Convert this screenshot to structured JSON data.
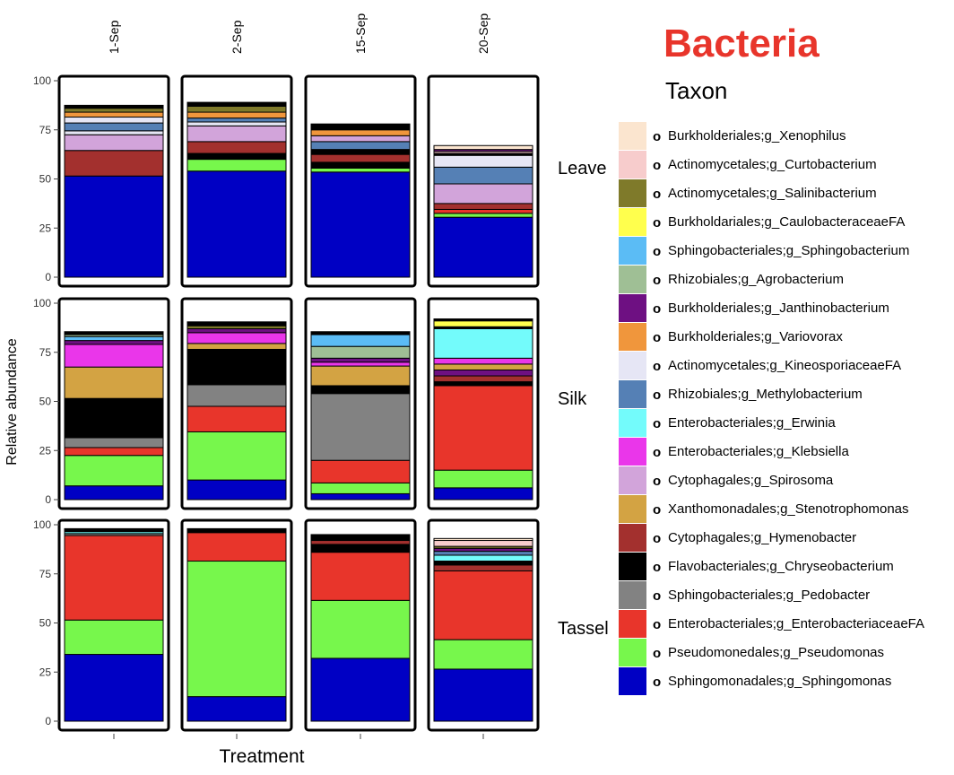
{
  "header": {
    "title": "Bacteria",
    "legend_title": "Taxon"
  },
  "chart_data": {
    "type": "bar",
    "stacked": true,
    "faceted": true,
    "xlabel": "Treatment",
    "ylabel": "Relative abundance",
    "ylim": [
      0,
      100
    ],
    "yticks": [
      0,
      25,
      50,
      75,
      100
    ],
    "columns": [
      "1-Sep",
      "2-Sep",
      "15-Sep",
      "20-Sep"
    ],
    "rows": [
      "Leave",
      "Silk",
      "Tassel"
    ],
    "legend_position": "right",
    "taxa": [
      {
        "bullet": "o",
        "name": "Burkholderiales;g_Xenophilus",
        "color": "#fbe5cf"
      },
      {
        "bullet": "o",
        "name": "Actinomycetales;g_Curtobacterium",
        "color": "#f7cccc"
      },
      {
        "bullet": "o",
        "name": "Actinomycetales;g_Salinibacterium",
        "color": "#7f7a2a"
      },
      {
        "bullet": "o",
        "name": "Burkholdariales;g_CaulobacteraceaeFA",
        "color": "#ffff4d"
      },
      {
        "bullet": "o",
        "name": "Sphingobacteriales;g_Sphingobacterium",
        "color": "#5bbcf5"
      },
      {
        "bullet": "o",
        "name": "Rhizobiales;g_Agrobacterium",
        "color": "#9fbf95"
      },
      {
        "bullet": "o",
        "name": "Burkholderiales;g_Janthinobacterium",
        "color": "#6e1082"
      },
      {
        "bullet": "o",
        "name": "Burkholderiales;g_Variovorax",
        "color": "#f0963c"
      },
      {
        "bullet": "o",
        "name": "Actinomycetales;g_KineosporiaceaeFA",
        "color": "#e6e6f5"
      },
      {
        "bullet": "o",
        "name": "Rhizobiales;g_Methylobacterium",
        "color": "#5580b5"
      },
      {
        "bullet": "o",
        "name": "Enterobacteriales;g_Erwinia",
        "color": "#73fbfb"
      },
      {
        "bullet": "o",
        "name": "Enterobacteriales;g_Klebsiella",
        "color": "#ea36ea"
      },
      {
        "bullet": "o",
        "name": "Cytophagales;g_Spirosoma",
        "color": "#d2a4da"
      },
      {
        "bullet": "o",
        "name": "Xanthomonadales;g_Stenotrophomonas",
        "color": "#d3a343"
      },
      {
        "bullet": "o",
        "name": "Cytophagales;g_Hymenobacter",
        "color": "#a3302e"
      },
      {
        "bullet": "o",
        "name": "Flavobacteriales;g_Chryseobacterium",
        "color": "#000000"
      },
      {
        "bullet": "o",
        "name": "Sphingobacteriales;g_Pedobacter",
        "color": "#828282"
      },
      {
        "bullet": "o",
        "name": "Enterobacteriales;g_EnterobacteriaceaeFA",
        "color": "#e8352b"
      },
      {
        "bullet": "o",
        "name": "Pseudomonedales;g_Pseudomonas",
        "color": "#77f74c"
      },
      {
        "bullet": "o",
        "name": "Sphingomonadales;g_Sphingomonas",
        "color": "#0000c4"
      }
    ],
    "bars": [
      {
        "row": "Leave",
        "column": "1-Sep",
        "segments": [
          {
            "taxon": "Sphingomonadales;g_Sphingomonas",
            "value": 51.5
          },
          {
            "taxon": "Cytophagales;g_Hymenobacter",
            "value": 13
          },
          {
            "taxon": "Cytophagales;g_Spirosoma",
            "value": 8
          },
          {
            "taxon": "Actinomycetales;g_KineosporiaceaeFA",
            "value": 2
          },
          {
            "taxon": "Rhizobiales;g_Methylobacterium",
            "value": 4
          },
          {
            "taxon": "Actinomycetales;g_KineosporiaceaeFA",
            "value": 3
          },
          {
            "taxon": "Burkholderiales;g_Variovorax",
            "value": 2.5
          },
          {
            "taxon": "Actinomycetales;g_Salinibacterium",
            "value": 2
          },
          {
            "taxon": "Flavobacteriales;g_Chryseobacterium",
            "value": 1.5
          }
        ]
      },
      {
        "row": "Leave",
        "column": "2-Sep",
        "segments": [
          {
            "taxon": "Sphingomonadales;g_Sphingomonas",
            "value": 54
          },
          {
            "taxon": "Pseudomonedales;g_Pseudomonas",
            "value": 6
          },
          {
            "taxon": "Flavobacteriales;g_Chryseobacterium",
            "value": 3
          },
          {
            "taxon": "Cytophagales;g_Hymenobacter",
            "value": 6
          },
          {
            "taxon": "Cytophagales;g_Spirosoma",
            "value": 8
          },
          {
            "taxon": "Actinomycetales;g_KineosporiaceaeFA",
            "value": 2
          },
          {
            "taxon": "Rhizobiales;g_Methylobacterium",
            "value": 2
          },
          {
            "taxon": "Burkholderiales;g_Variovorax",
            "value": 3
          },
          {
            "taxon": "Actinomycetales;g_Salinibacterium",
            "value": 3
          },
          {
            "taxon": "Flavobacteriales;g_Chryseobacterium",
            "value": 2
          }
        ]
      },
      {
        "row": "Leave",
        "column": "15-Sep",
        "segments": [
          {
            "taxon": "Sphingomonadales;g_Sphingomonas",
            "value": 53.5
          },
          {
            "taxon": "Pseudomonedales;g_Pseudomonas",
            "value": 2
          },
          {
            "taxon": "Flavobacteriales;g_Chryseobacterium",
            "value": 3
          },
          {
            "taxon": "Cytophagales;g_Hymenobacter",
            "value": 4
          },
          {
            "taxon": "Flavobacteriales;g_Chryseobacterium",
            "value": 2.5
          },
          {
            "taxon": "Rhizobiales;g_Methylobacterium",
            "value": 4
          },
          {
            "taxon": "Cytophagales;g_Spirosoma",
            "value": 3
          },
          {
            "taxon": "Burkholderiales;g_Variovorax",
            "value": 3
          },
          {
            "taxon": "Flavobacteriales;g_Chryseobacterium",
            "value": 3
          }
        ]
      },
      {
        "row": "Leave",
        "column": "20-Sep",
        "segments": [
          {
            "taxon": "Sphingomonadales;g_Sphingomonas",
            "value": 30.5
          },
          {
            "taxon": "Pseudomonedales;g_Pseudomonas",
            "value": 2
          },
          {
            "taxon": "Enterobacteriales;g_EnterobacteriaceaeFA",
            "value": 2
          },
          {
            "taxon": "Cytophagales;g_Hymenobacter",
            "value": 3
          },
          {
            "taxon": "Cytophagales;g_Spirosoma",
            "value": 10
          },
          {
            "taxon": "Rhizobiales;g_Methylobacterium",
            "value": 8.5
          },
          {
            "taxon": "Actinomycetales;g_KineosporiaceaeFA",
            "value": 6
          },
          {
            "taxon": "Flavobacteriales;g_Chryseobacterium",
            "value": 1
          },
          {
            "taxon": "Actinomycetales;g_Curtobacterium",
            "value": 1
          },
          {
            "taxon": "Burkholderiales;g_Janthinobacterium",
            "value": 1
          },
          {
            "taxon": "Burkholderiales;g_Xenophilus",
            "value": 2
          }
        ]
      },
      {
        "row": "Silk",
        "column": "1-Sep",
        "segments": [
          {
            "taxon": "Sphingomonadales;g_Sphingomonas",
            "value": 7
          },
          {
            "taxon": "Pseudomonedales;g_Pseudomonas",
            "value": 15.5
          },
          {
            "taxon": "Enterobacteriales;g_EnterobacteriaceaeFA",
            "value": 4
          },
          {
            "taxon": "Sphingobacteriales;g_Pedobacter",
            "value": 5
          },
          {
            "taxon": "Flavobacteriales;g_Chryseobacterium",
            "value": 20
          },
          {
            "taxon": "Xanthomonadales;g_Stenotrophomonas",
            "value": 16
          },
          {
            "taxon": "Enterobacteriales;g_Klebsiella",
            "value": 11.5
          },
          {
            "taxon": "Burkholderiales;g_Janthinobacterium",
            "value": 2
          },
          {
            "taxon": "Sphingobacteriales;g_Sphingobacterium",
            "value": 2
          },
          {
            "taxon": "Rhizobiales;g_Agrobacterium",
            "value": 1
          },
          {
            "taxon": "Flavobacteriales;g_Chryseobacterium",
            "value": 1.5
          }
        ]
      },
      {
        "row": "Silk",
        "column": "2-Sep",
        "segments": [
          {
            "taxon": "Sphingomonadales;g_Sphingomonas",
            "value": 10
          },
          {
            "taxon": "Pseudomonedales;g_Pseudomonas",
            "value": 24.5
          },
          {
            "taxon": "Enterobacteriales;g_EnterobacteriaceaeFA",
            "value": 13
          },
          {
            "taxon": "Sphingobacteriales;g_Pedobacter",
            "value": 11
          },
          {
            "taxon": "Flavobacteriales;g_Chryseobacterium",
            "value": 18
          },
          {
            "taxon": "Xanthomonadales;g_Stenotrophomonas",
            "value": 3
          },
          {
            "taxon": "Enterobacteriales;g_Klebsiella",
            "value": 5.5
          },
          {
            "taxon": "Burkholderiales;g_Janthinobacterium",
            "value": 2
          },
          {
            "taxon": "Actinomycetales;g_Salinibacterium",
            "value": 1.5
          },
          {
            "taxon": "Flavobacteriales;g_Chryseobacterium",
            "value": 2
          }
        ]
      },
      {
        "row": "Silk",
        "column": "15-Sep",
        "segments": [
          {
            "taxon": "Sphingomonadales;g_Sphingomonas",
            "value": 3
          },
          {
            "taxon": "Pseudomonedales;g_Pseudomonas",
            "value": 5.5
          },
          {
            "taxon": "Enterobacteriales;g_EnterobacteriaceaeFA",
            "value": 11.5
          },
          {
            "taxon": "Sphingobacteriales;g_Pedobacter",
            "value": 34
          },
          {
            "taxon": "Flavobacteriales;g_Chryseobacterium",
            "value": 4
          },
          {
            "taxon": "Xanthomonadales;g_Stenotrophomonas",
            "value": 10
          },
          {
            "taxon": "Enterobacteriales;g_Klebsiella",
            "value": 2
          },
          {
            "taxon": "Burkholderiales;g_Janthinobacterium",
            "value": 2
          },
          {
            "taxon": "Rhizobiales;g_Agrobacterium",
            "value": 6
          },
          {
            "taxon": "Sphingobacteriales;g_Sphingobacterium",
            "value": 6
          },
          {
            "taxon": "Flavobacteriales;g_Chryseobacterium",
            "value": 1.5
          }
        ]
      },
      {
        "row": "Silk",
        "column": "20-Sep",
        "segments": [
          {
            "taxon": "Sphingomonadales;g_Sphingomonas",
            "value": 6
          },
          {
            "taxon": "Pseudomonedales;g_Pseudomonas",
            "value": 9
          },
          {
            "taxon": "Enterobacteriales;g_EnterobacteriaceaeFA",
            "value": 43
          },
          {
            "taxon": "Flavobacteriales;g_Chryseobacterium",
            "value": 2
          },
          {
            "taxon": "Cytophagales;g_Hymenobacter",
            "value": 3
          },
          {
            "taxon": "Burkholderiales;g_Janthinobacterium",
            "value": 3
          },
          {
            "taxon": "Xanthomonadales;g_Stenotrophomonas",
            "value": 3
          },
          {
            "taxon": "Enterobacteriales;g_Klebsiella",
            "value": 3
          },
          {
            "taxon": "Enterobacteriales;g_Erwinia",
            "value": 15
          },
          {
            "taxon": "Flavobacteriales;g_Chryseobacterium",
            "value": 1
          },
          {
            "taxon": "Burkholdariales;g_CaulobacteraceaeFA",
            "value": 3
          },
          {
            "taxon": "Flavobacteriales;g_Chryseobacterium",
            "value": 1
          }
        ]
      },
      {
        "row": "Tassel",
        "column": "1-Sep",
        "segments": [
          {
            "taxon": "Sphingomonadales;g_Sphingomonas",
            "value": 34
          },
          {
            "taxon": "Pseudomonedales;g_Pseudomonas",
            "value": 17.5
          },
          {
            "taxon": "Enterobacteriales;g_EnterobacteriaceaeFA",
            "value": 43
          },
          {
            "taxon": "Sphingobacteriales;g_Pedobacter",
            "value": 1
          },
          {
            "taxon": "Enterobacteriales;g_Erwinia",
            "value": 1
          },
          {
            "taxon": "Flavobacteriales;g_Chryseobacterium",
            "value": 1.5
          }
        ]
      },
      {
        "row": "Tassel",
        "column": "2-Sep",
        "segments": [
          {
            "taxon": "Sphingomonadales;g_Sphingomonas",
            "value": 12.5
          },
          {
            "taxon": "Pseudomonedales;g_Pseudomonas",
            "value": 69
          },
          {
            "taxon": "Enterobacteriales;g_EnterobacteriaceaeFA",
            "value": 14.5
          },
          {
            "taxon": "Flavobacteriales;g_Chryseobacterium",
            "value": 2
          }
        ]
      },
      {
        "row": "Tassel",
        "column": "15-Sep",
        "segments": [
          {
            "taxon": "Sphingomonadales;g_Sphingomonas",
            "value": 32
          },
          {
            "taxon": "Pseudomonedales;g_Pseudomonas",
            "value": 29.5
          },
          {
            "taxon": "Enterobacteriales;g_EnterobacteriaceaeFA",
            "value": 24.5
          },
          {
            "taxon": "Flavobacteriales;g_Chryseobacterium",
            "value": 4
          },
          {
            "taxon": "Cytophagales;g_Hymenobacter",
            "value": 2
          },
          {
            "taxon": "Flavobacteriales;g_Chryseobacterium",
            "value": 3
          }
        ]
      },
      {
        "row": "Tassel",
        "column": "20-Sep",
        "segments": [
          {
            "taxon": "Sphingomonadales;g_Sphingomonas",
            "value": 26.5
          },
          {
            "taxon": "Pseudomonedales;g_Pseudomonas",
            "value": 15
          },
          {
            "taxon": "Enterobacteriales;g_EnterobacteriaceaeFA",
            "value": 35
          },
          {
            "taxon": "Cytophagales;g_Hymenobacter",
            "value": 3
          },
          {
            "taxon": "Flavobacteriales;g_Chryseobacterium",
            "value": 2
          },
          {
            "taxon": "Enterobacteriales;g_Erwinia",
            "value": 3
          },
          {
            "taxon": "Rhizobiales;g_Methylobacterium",
            "value": 2
          },
          {
            "taxon": "Burkholderiales;g_Janthinobacterium",
            "value": 1.5
          },
          {
            "taxon": "Actinomycetales;g_Salinibacterium",
            "value": 1
          },
          {
            "taxon": "Actinomycetales;g_Curtobacterium",
            "value": 3
          },
          {
            "taxon": "Burkholderiales;g_Xenophilus",
            "value": 1
          }
        ]
      }
    ]
  }
}
